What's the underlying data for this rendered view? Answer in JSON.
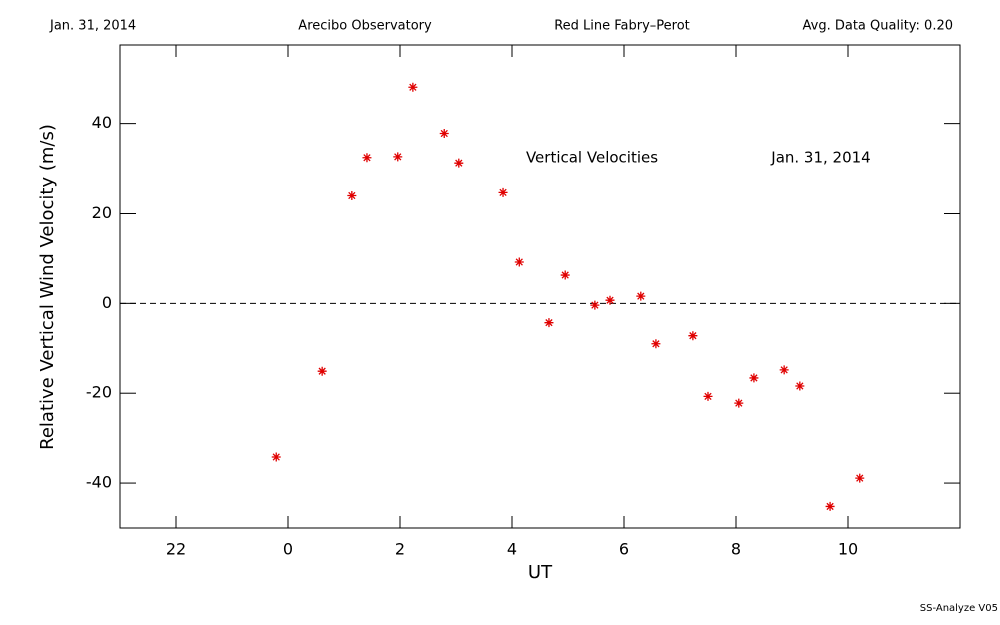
{
  "chart_data": {
    "type": "scatter",
    "header": [
      "Jan. 31, 2014",
      "Arecibo Observatory",
      "Red Line Fabry–Perot",
      "Avg. Data Quality: 0.20"
    ],
    "xlabel": "UT",
    "ylabel": "Relative Vertical Wind Velocity (m/s)",
    "annotations": [
      "Vertical Velocities",
      "Jan. 31, 2014"
    ],
    "footer": "SS-Analyze V05",
    "xlim": [
      -3,
      12
    ],
    "xticks": [
      {
        "value": -2,
        "label": "22"
      },
      0,
      2,
      4,
      6,
      8,
      10
    ],
    "ylim": [
      -50,
      57.5
    ],
    "yticks": [
      -40,
      -20,
      0,
      20,
      40
    ],
    "zero_line": true,
    "series": [
      {
        "color": "#e00000",
        "marker": "asterisk",
        "x": [
          -0.21,
          0.61,
          1.14,
          1.41,
          1.96,
          2.23,
          2.79,
          3.05,
          3.84,
          4.13,
          4.66,
          4.95,
          5.48,
          5.75,
          6.3,
          6.57,
          7.23,
          7.5,
          8.05,
          8.32,
          8.86,
          9.14,
          9.68,
          10.21
        ],
        "values": [
          -34.2,
          -15.1,
          24.0,
          32.4,
          32.6,
          48.1,
          37.8,
          31.2,
          24.7,
          9.2,
          -4.3,
          6.3,
          -0.4,
          0.7,
          1.6,
          -9.0,
          -7.2,
          -20.7,
          -22.2,
          -16.6,
          -14.8,
          -18.4,
          -45.2,
          -38.9
        ]
      }
    ]
  }
}
